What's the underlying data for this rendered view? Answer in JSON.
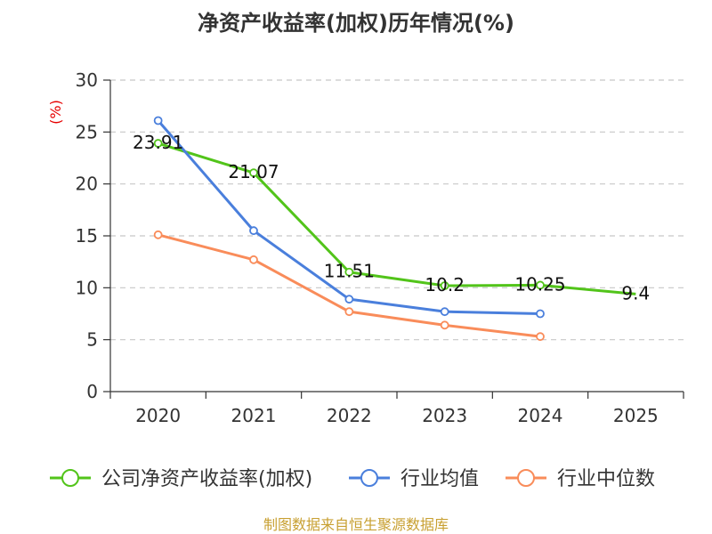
{
  "chart_data": {
    "type": "line",
    "title": "净资产收益率(加权)历年情况(%)",
    "ylabel": "(%)",
    "xlabel": "",
    "categories": [
      "2020",
      "2021",
      "2022",
      "2023",
      "2024",
      "2025"
    ],
    "ylim": [
      0,
      30
    ],
    "yticks": [
      0,
      5,
      10,
      15,
      20,
      25,
      30
    ],
    "grid": true,
    "legend_position": "bottom",
    "series": [
      {
        "name": "公司净资产收益率(加权)",
        "color": "#52c41a",
        "values": [
          23.91,
          21.07,
          11.51,
          10.2,
          10.25,
          9.4
        ],
        "labels": [
          "23.91",
          "21.07",
          "11.51",
          "10.2",
          "10.25",
          "9.4"
        ]
      },
      {
        "name": "行业均值",
        "color": "#4a7fdc",
        "values": [
          26.1,
          15.5,
          8.9,
          7.7,
          7.5,
          null
        ]
      },
      {
        "name": "行业中位数",
        "color": "#f98c5a",
        "values": [
          15.1,
          12.7,
          7.7,
          6.4,
          5.3,
          null
        ]
      }
    ],
    "source": "制图数据来自恒生聚源数据库"
  }
}
